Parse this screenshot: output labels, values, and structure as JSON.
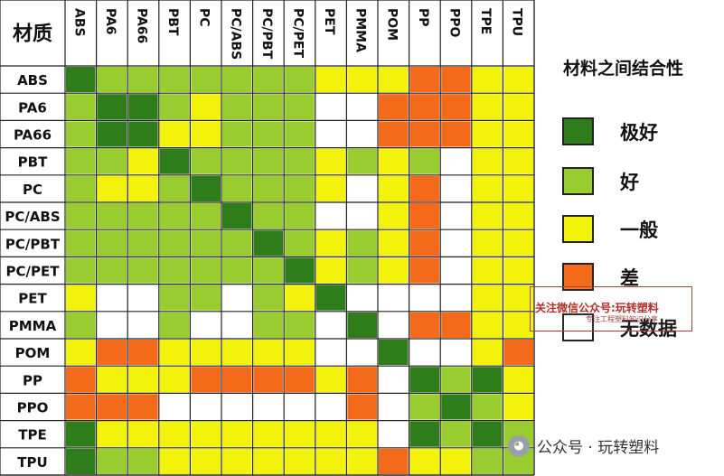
{
  "chart_data": {
    "type": "heatmap",
    "title": "材料之间结合性",
    "corner_label": "材质",
    "columns": [
      "ABS",
      "PA6",
      "PA66",
      "PBT",
      "PC",
      "PC/ABS",
      "PC/PBT",
      "PC/PET",
      "PET",
      "PMMA",
      "POM",
      "PP",
      "PPO",
      "TPE",
      "TPU"
    ],
    "rows": [
      "ABS",
      "PA6",
      "PA66",
      "PBT",
      "PC",
      "PC/ABS",
      "PC/PBT",
      "PC/PET",
      "PET",
      "PMMA",
      "POM",
      "PP",
      "PPO",
      "TPE",
      "TPU"
    ],
    "levels": [
      "极好",
      "好",
      "一般",
      "差",
      "无数据"
    ],
    "level_colors": [
      "#2e7d1a",
      "#99cc2e",
      "#f2f20a",
      "#f26a1a",
      "#ffffff"
    ],
    "matrix": [
      [
        0,
        1,
        1,
        1,
        1,
        1,
        1,
        1,
        2,
        2,
        2,
        3,
        3,
        2,
        2
      ],
      [
        1,
        0,
        0,
        1,
        2,
        1,
        1,
        1,
        4,
        4,
        3,
        3,
        3,
        2,
        2
      ],
      [
        1,
        0,
        0,
        2,
        2,
        1,
        1,
        1,
        4,
        4,
        3,
        3,
        3,
        2,
        2
      ],
      [
        1,
        1,
        2,
        0,
        1,
        1,
        1,
        1,
        2,
        1,
        2,
        1,
        4,
        2,
        2
      ],
      [
        1,
        2,
        2,
        1,
        0,
        1,
        1,
        1,
        2,
        4,
        2,
        3,
        4,
        2,
        2
      ],
      [
        1,
        1,
        1,
        1,
        1,
        0,
        1,
        1,
        4,
        4,
        2,
        3,
        4,
        2,
        2
      ],
      [
        1,
        1,
        1,
        1,
        1,
        1,
        0,
        1,
        2,
        1,
        2,
        3,
        4,
        2,
        2
      ],
      [
        1,
        1,
        1,
        1,
        1,
        1,
        1,
        0,
        2,
        1,
        2,
        3,
        4,
        2,
        2
      ],
      [
        2,
        4,
        4,
        1,
        1,
        4,
        1,
        2,
        0,
        4,
        4,
        4,
        4,
        2,
        2
      ],
      [
        1,
        4,
        4,
        1,
        4,
        4,
        1,
        1,
        4,
        0,
        4,
        3,
        3,
        2,
        2
      ],
      [
        2,
        3,
        3,
        2,
        2,
        2,
        2,
        2,
        4,
        4,
        0,
        4,
        4,
        2,
        3
      ],
      [
        3,
        2,
        2,
        2,
        3,
        3,
        3,
        3,
        2,
        3,
        4,
        0,
        1,
        0,
        2
      ],
      [
        3,
        3,
        3,
        4,
        4,
        4,
        4,
        4,
        4,
        3,
        4,
        1,
        0,
        1,
        2
      ],
      [
        0,
        2,
        2,
        2,
        2,
        2,
        2,
        2,
        2,
        2,
        4,
        0,
        1,
        0,
        1
      ],
      [
        0,
        1,
        1,
        2,
        2,
        2,
        2,
        2,
        2,
        2,
        3,
        2,
        2,
        1,
        1
      ]
    ]
  },
  "watermark": {
    "text": "关注微信公众号:玩转塑料",
    "subtext": "专注工程塑料知识分享"
  },
  "footer": {
    "source": "公众号 · 玩转塑料"
  }
}
